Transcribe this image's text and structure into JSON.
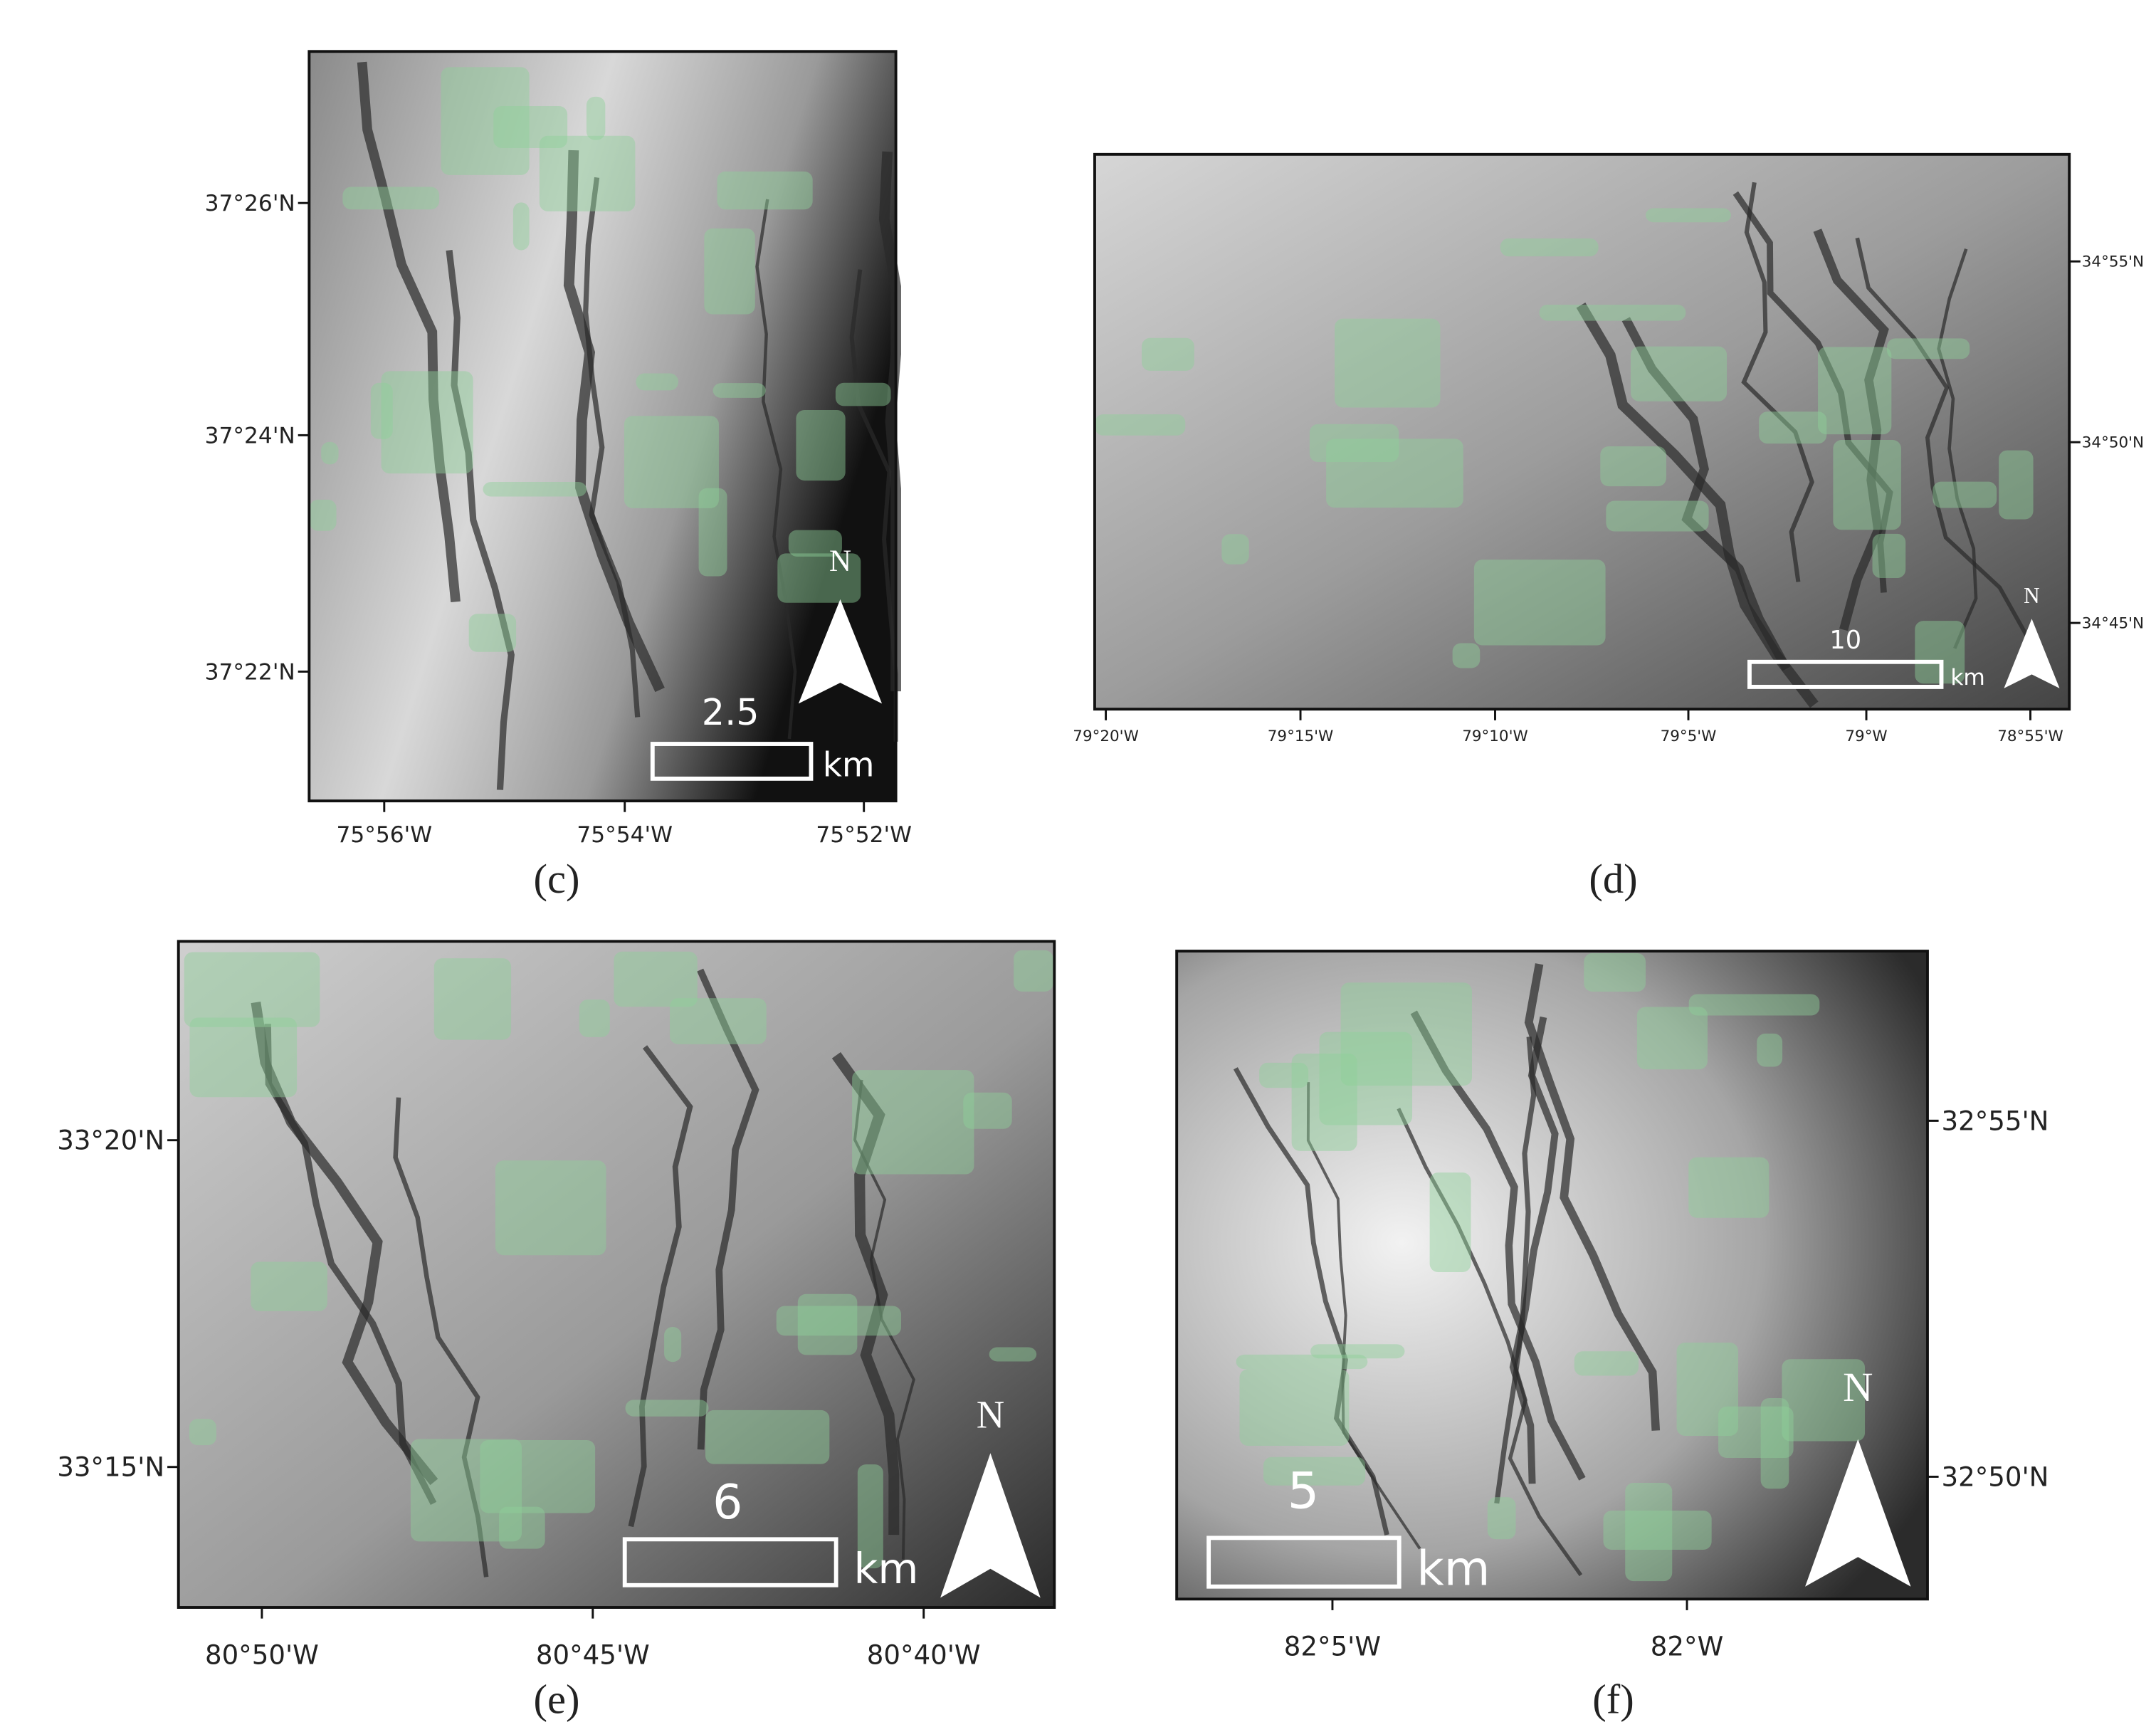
{
  "panels": [
    {
      "label": "(c)",
      "lat_labels": [
        "37°26'N",
        "37°24'N",
        "37°22'N"
      ],
      "lon_labels": [
        "75°56'W",
        "75°54'W",
        "75°52'W"
      ],
      "scale_label": "2.5",
      "scale_unit": "km",
      "north": "N"
    },
    {
      "label": "(d)",
      "lat_labels": [
        "34°55'N",
        "34°50'N",
        "34°45'N"
      ],
      "lon_labels": [
        "79°20'W",
        "79°15'W",
        "79°10'W",
        "79°5'W",
        "79°W",
        "78°55'W"
      ],
      "scale_label": "10",
      "scale_unit": "km",
      "north": "N"
    },
    {
      "label": "(e)",
      "lat_labels": [
        "33°20'N",
        "33°15'N"
      ],
      "lon_labels": [
        "80°50'W",
        "80°45'W",
        "80°40'W"
      ],
      "scale_label": "6",
      "scale_unit": "km",
      "north": "N"
    },
    {
      "label": "(f)",
      "lat_labels": [
        "32°55'N",
        "32°50'N"
      ],
      "lon_labels": [
        "82°5'W",
        "82°W"
      ],
      "scale_label": "5",
      "scale_unit": "km",
      "north": "N"
    }
  ]
}
